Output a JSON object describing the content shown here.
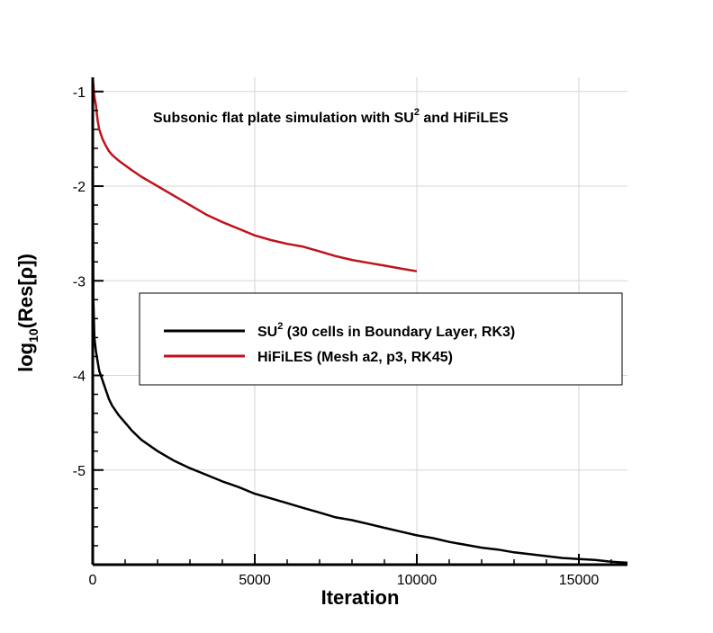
{
  "chart_data": {
    "type": "line",
    "annotation": {
      "prefix": "Subsonic flat plate simulation with SU",
      "sup": "2",
      "suffix": " and HiFiLES"
    },
    "xlabel": "Iteration",
    "ylabel": {
      "prefix": "log",
      "sub": "10",
      "suffix": "(Res[ρ])"
    },
    "xlim": [
      0,
      16500
    ],
    "ylim": [
      -6.0,
      -0.85
    ],
    "xticks": [
      0,
      5000,
      10000,
      15000
    ],
    "xtick_labels": [
      "0",
      "5000",
      "10000",
      "15000"
    ],
    "yticks": [
      -1,
      -2,
      -3,
      -4,
      -5
    ],
    "ytick_labels": [
      "-1",
      "-2",
      "-3",
      "-4",
      "-5"
    ],
    "grid": true,
    "legend_position": "center-right",
    "series": [
      {
        "legend": {
          "prefix": "SU",
          "sup": "2",
          "suffix": " (30 cells in Boundary Layer, RK3)"
        },
        "color": "#000000",
        "x": [
          0,
          20,
          50,
          100,
          150,
          200,
          300,
          400,
          500,
          600,
          800,
          1000,
          1200,
          1500,
          2000,
          2500,
          3000,
          3500,
          4000,
          4500,
          5000,
          5500,
          6000,
          6500,
          7000,
          7500,
          8000,
          8500,
          9000,
          9500,
          10000,
          10500,
          11000,
          11500,
          12000,
          12500,
          13000,
          13500,
          14000,
          14500,
          15000,
          15500,
          16000,
          16500
        ],
        "y": [
          -0.95,
          -3.2,
          -3.6,
          -3.75,
          -3.85,
          -3.95,
          -4.05,
          -4.15,
          -4.25,
          -4.32,
          -4.42,
          -4.5,
          -4.58,
          -4.68,
          -4.8,
          -4.9,
          -4.98,
          -5.05,
          -5.12,
          -5.18,
          -5.25,
          -5.3,
          -5.35,
          -5.4,
          -5.45,
          -5.5,
          -5.53,
          -5.57,
          -5.61,
          -5.65,
          -5.69,
          -5.72,
          -5.76,
          -5.79,
          -5.82,
          -5.84,
          -5.87,
          -5.89,
          -5.91,
          -5.93,
          -5.94,
          -5.95,
          -5.97,
          -5.98
        ]
      },
      {
        "legend": {
          "prefix": "HiFiLES (Mesh a2, p3, RK45)",
          "sup": "",
          "suffix": ""
        },
        "color": "#c0121b",
        "x": [
          0,
          50,
          100,
          150,
          200,
          300,
          400,
          500,
          600,
          700,
          800,
          1000,
          1200,
          1500,
          1800,
          2000,
          2500,
          3000,
          3500,
          4000,
          4500,
          5000,
          5500,
          6000,
          6500,
          7000,
          7500,
          8000,
          8500,
          9000,
          9500,
          10000
        ],
        "y": [
          -0.85,
          -1.05,
          -1.15,
          -1.3,
          -1.4,
          -1.5,
          -1.57,
          -1.63,
          -1.67,
          -1.7,
          -1.73,
          -1.78,
          -1.83,
          -1.9,
          -1.96,
          -2.0,
          -2.1,
          -2.2,
          -2.3,
          -2.38,
          -2.45,
          -2.52,
          -2.57,
          -2.61,
          -2.64,
          -2.69,
          -2.74,
          -2.78,
          -2.81,
          -2.84,
          -2.87,
          -2.9
        ]
      }
    ]
  }
}
